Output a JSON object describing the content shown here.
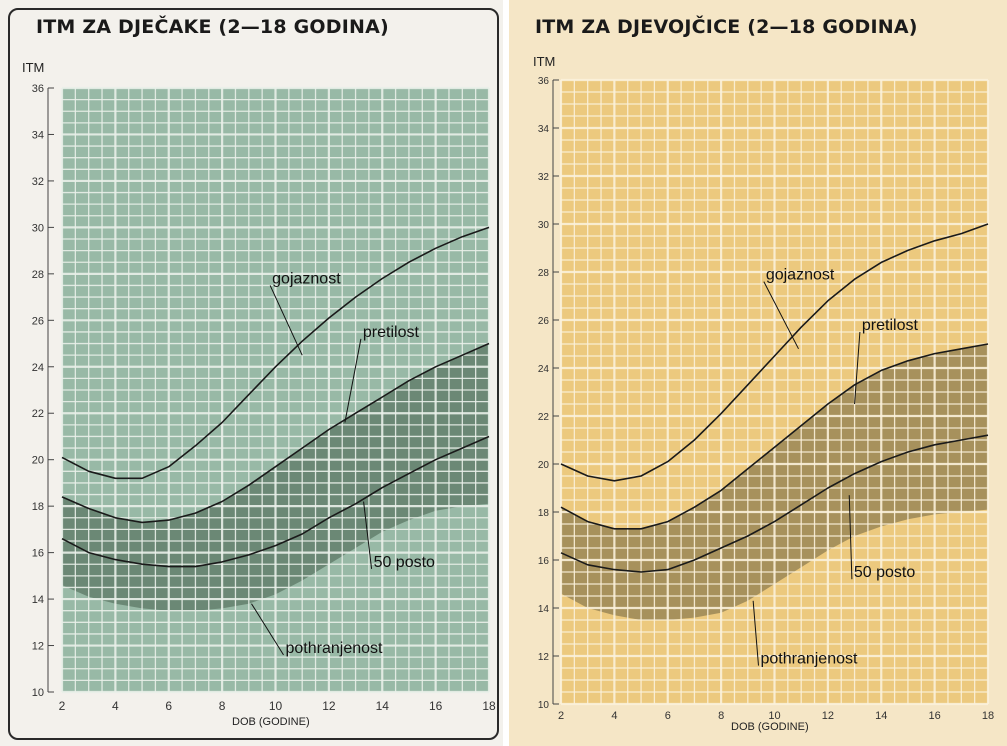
{
  "chart_data": [
    {
      "type": "line",
      "title": "ITM ZA DJEČAKE (2—18 GODINA)",
      "ylabel": "ITM",
      "xlabel": "DOB (GODINE)",
      "xlim": [
        2,
        18
      ],
      "ylim": [
        10,
        36
      ],
      "x_ticks": [
        2,
        4,
        6,
        8,
        10,
        12,
        14,
        16,
        18
      ],
      "y_ticks": [
        10,
        12,
        14,
        16,
        18,
        20,
        22,
        24,
        26,
        28,
        30,
        32,
        34,
        36
      ],
      "grid": true,
      "colors": {
        "background": "#98b9a6",
        "band": "#5a7463",
        "grid": "#e9efe9",
        "line": "#1a1a1a",
        "card": "#f3f1ec"
      },
      "band": {
        "x": [
          2,
          3,
          4,
          5,
          6,
          7,
          8,
          9,
          10,
          11,
          12,
          13,
          14,
          15,
          16,
          17,
          18
        ],
        "upper": [
          18.4,
          17.9,
          17.5,
          17.3,
          17.4,
          17.7,
          18.2,
          18.9,
          19.7,
          20.5,
          21.3,
          22.0,
          22.7,
          23.4,
          24.0,
          24.5,
          25.0
        ],
        "lower": [
          14.6,
          14.1,
          13.8,
          13.6,
          13.5,
          13.5,
          13.6,
          13.8,
          14.2,
          14.8,
          15.5,
          16.2,
          16.9,
          17.4,
          17.8,
          18.0,
          18.1
        ]
      },
      "series": [
        {
          "name": "gojaznost",
          "x": [
            2,
            3,
            4,
            5,
            6,
            7,
            8,
            9,
            10,
            11,
            12,
            13,
            14,
            15,
            16,
            17,
            18
          ],
          "values": [
            20.1,
            19.5,
            19.2,
            19.2,
            19.7,
            20.6,
            21.6,
            22.8,
            24.0,
            25.1,
            26.1,
            27.0,
            27.8,
            28.5,
            29.1,
            29.6,
            30.0
          ]
        },
        {
          "name": "pretilost",
          "x": [
            2,
            3,
            4,
            5,
            6,
            7,
            8,
            9,
            10,
            11,
            12,
            13,
            14,
            15,
            16,
            17,
            18
          ],
          "values": [
            18.4,
            17.9,
            17.5,
            17.3,
            17.4,
            17.7,
            18.2,
            18.9,
            19.7,
            20.5,
            21.3,
            22.0,
            22.7,
            23.4,
            24.0,
            24.5,
            25.0
          ]
        },
        {
          "name": "50 posto",
          "x": [
            2,
            3,
            4,
            5,
            6,
            7,
            8,
            9,
            10,
            11,
            12,
            13,
            14,
            15,
            16,
            17,
            18
          ],
          "values": [
            16.6,
            16.0,
            15.7,
            15.5,
            15.4,
            15.4,
            15.6,
            15.9,
            16.3,
            16.8,
            17.5,
            18.1,
            18.8,
            19.4,
            20.0,
            20.5,
            21.0
          ]
        }
      ],
      "annotations": [
        {
          "text": "gojaznost",
          "at": [
            11,
            24.5
          ],
          "label": [
            9.8,
            27.5
          ]
        },
        {
          "text": "pretilost",
          "at": [
            12.6,
            21.6
          ],
          "label": [
            13.2,
            25.2
          ]
        },
        {
          "text": "50 posto",
          "at": [
            13.3,
            18.2
          ],
          "label": [
            13.6,
            15.3
          ]
        },
        {
          "text": "pothranjenost",
          "at": [
            9.1,
            13.8
          ],
          "label": [
            10.3,
            11.6
          ]
        }
      ]
    },
    {
      "type": "line",
      "title": "ITM ZA DJEVOJČICE (2—18 GODINA)",
      "ylabel": "ITM",
      "xlabel": "DOB (GODINE)",
      "xlim": [
        2,
        18
      ],
      "ylim": [
        10,
        36
      ],
      "x_ticks": [
        2,
        4,
        6,
        8,
        10,
        12,
        14,
        16,
        18
      ],
      "y_ticks": [
        10,
        12,
        14,
        16,
        18,
        20,
        22,
        24,
        26,
        28,
        30,
        32,
        34,
        36
      ],
      "grid": true,
      "colors": {
        "background": "#ecc97e",
        "band": "#8c7b4f",
        "grid": "#fbf1da",
        "line": "#1a1a1a",
        "card": "#f5e6c6"
      },
      "band": {
        "x": [
          2,
          3,
          4,
          5,
          6,
          7,
          8,
          9,
          10,
          11,
          12,
          13,
          14,
          15,
          16,
          17,
          18
        ],
        "upper": [
          18.2,
          17.6,
          17.3,
          17.3,
          17.6,
          18.2,
          18.9,
          19.8,
          20.7,
          21.6,
          22.5,
          23.3,
          23.9,
          24.3,
          24.6,
          24.8,
          25.0
        ],
        "lower": [
          14.6,
          14.0,
          13.7,
          13.5,
          13.5,
          13.6,
          13.8,
          14.3,
          15.0,
          15.7,
          16.4,
          17.0,
          17.4,
          17.7,
          17.9,
          18.0,
          18.1
        ]
      },
      "series": [
        {
          "name": "gojaznost",
          "x": [
            2,
            3,
            4,
            5,
            6,
            7,
            8,
            9,
            10,
            11,
            12,
            13,
            14,
            15,
            16,
            17,
            18
          ],
          "values": [
            20.0,
            19.5,
            19.3,
            19.5,
            20.1,
            21.0,
            22.1,
            23.3,
            24.5,
            25.7,
            26.8,
            27.7,
            28.4,
            28.9,
            29.3,
            29.6,
            30.0
          ]
        },
        {
          "name": "pretilost",
          "x": [
            2,
            3,
            4,
            5,
            6,
            7,
            8,
            9,
            10,
            11,
            12,
            13,
            14,
            15,
            16,
            17,
            18
          ],
          "values": [
            18.2,
            17.6,
            17.3,
            17.3,
            17.6,
            18.2,
            18.9,
            19.8,
            20.7,
            21.6,
            22.5,
            23.3,
            23.9,
            24.3,
            24.6,
            24.8,
            25.0
          ]
        },
        {
          "name": "50 posto",
          "x": [
            2,
            3,
            4,
            5,
            6,
            7,
            8,
            9,
            10,
            11,
            12,
            13,
            14,
            15,
            16,
            17,
            18
          ],
          "values": [
            16.3,
            15.8,
            15.6,
            15.5,
            15.6,
            16.0,
            16.5,
            17.0,
            17.6,
            18.3,
            19.0,
            19.6,
            20.1,
            20.5,
            20.8,
            21.0,
            21.2
          ]
        }
      ],
      "annotations": [
        {
          "text": "gojaznost",
          "at": [
            10.9,
            24.8
          ],
          "label": [
            9.6,
            27.6
          ]
        },
        {
          "text": "pretilost",
          "at": [
            13.0,
            22.5
          ],
          "label": [
            13.2,
            25.5
          ]
        },
        {
          "text": "50 posto",
          "at": [
            12.8,
            18.7
          ],
          "label": [
            12.9,
            15.2
          ]
        },
        {
          "text": "pothranjenost",
          "at": [
            9.2,
            14.3
          ],
          "label": [
            9.4,
            11.6
          ]
        }
      ]
    }
  ]
}
